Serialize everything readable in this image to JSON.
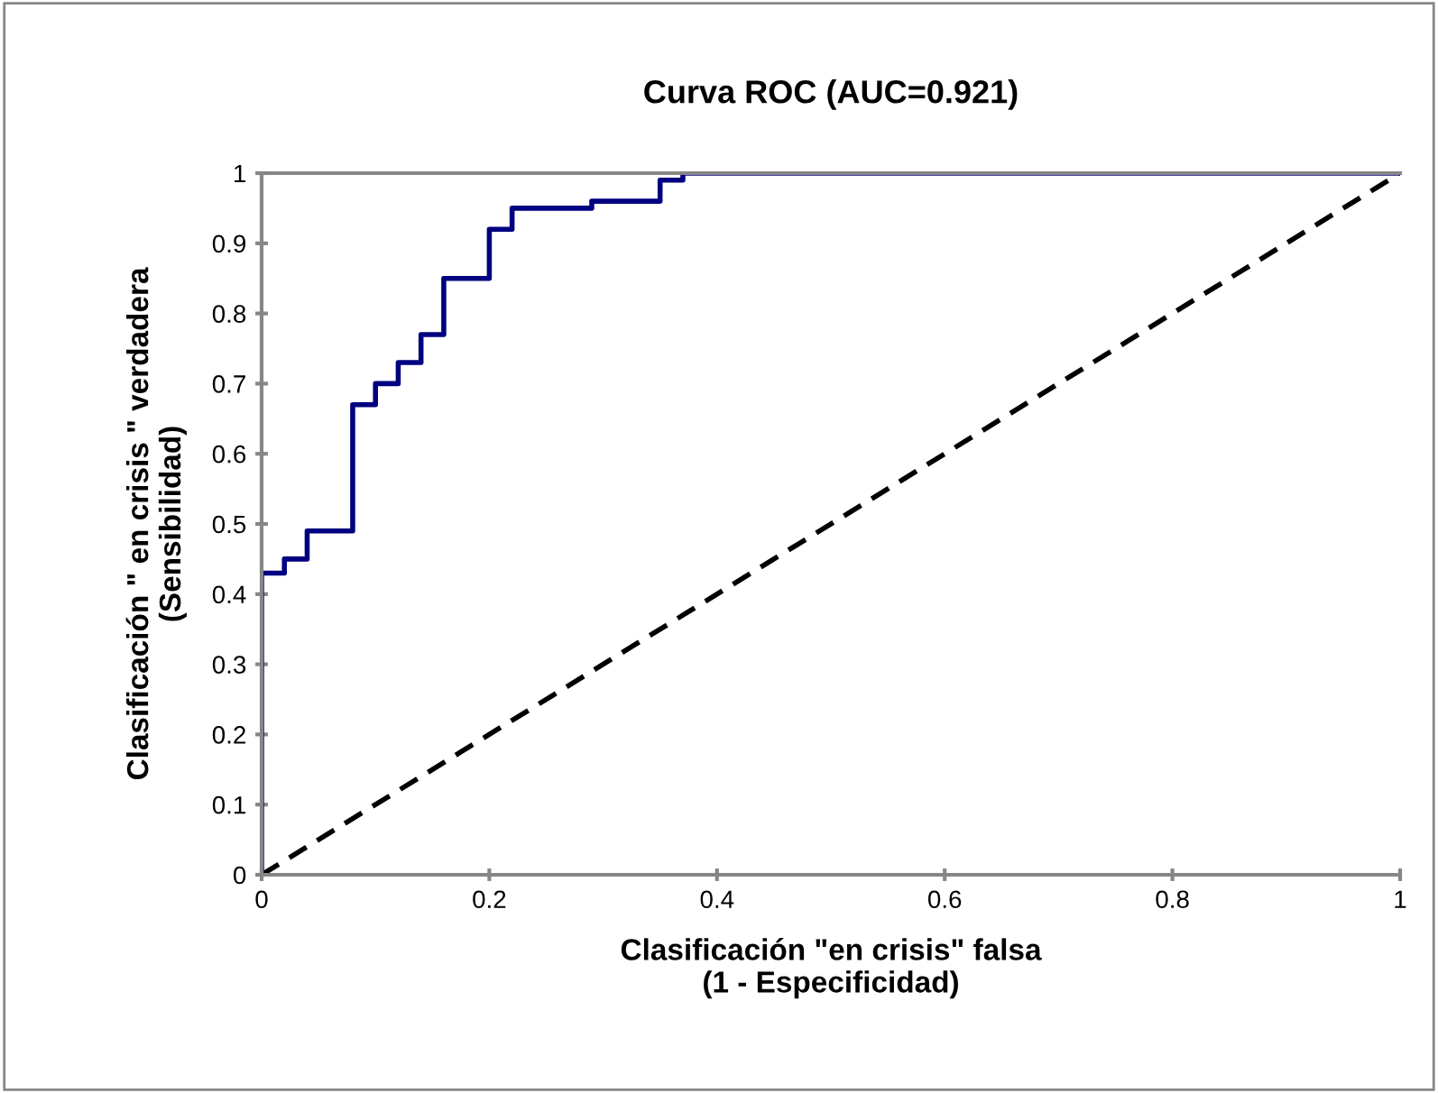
{
  "chart_data": {
    "type": "step",
    "title": "Curva ROC (AUC=0.921)",
    "xlabel": "Clasificación \"en crisis\" falsa\n(1 - Especificidad)",
    "ylabel": "Clasificación \" en crisis \" verdadera\n(Sensibilidad)",
    "xlim": [
      0,
      1
    ],
    "ylim": [
      0,
      1
    ],
    "xticks": [
      0,
      0.2,
      0.4,
      0.6,
      0.8,
      1
    ],
    "yticks": [
      0,
      0.1,
      0.2,
      0.3,
      0.4,
      0.5,
      0.6,
      0.7,
      0.8,
      0.9,
      1
    ],
    "grid": false,
    "legend": false,
    "series": [
      {
        "color": "#000080",
        "line_style": "solid",
        "x": [
          0,
          0,
          0.02,
          0.04,
          0.08,
          0.1,
          0.12,
          0.14,
          0.16,
          0.2,
          0.22,
          0.29,
          0.35,
          0.37,
          1
        ],
        "values": [
          0,
          0.43,
          0.45,
          0.49,
          0.67,
          0.7,
          0.73,
          0.77,
          0.85,
          0.92,
          0.95,
          0.96,
          0.99,
          1,
          1
        ]
      },
      {
        "type": "line",
        "color": "#000000",
        "line_style": "dashed",
        "x": [
          0,
          1
        ],
        "values": [
          0,
          1
        ]
      }
    ]
  }
}
